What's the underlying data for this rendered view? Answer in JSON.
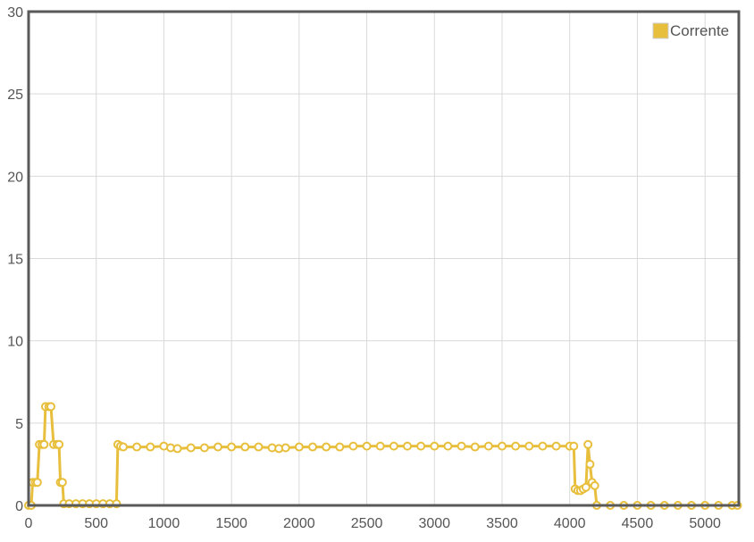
{
  "chart_data": {
    "type": "line",
    "title": "",
    "xlabel": "",
    "ylabel": "",
    "xlim": [
      0,
      5250
    ],
    "ylim": [
      0,
      30
    ],
    "x_ticks": [
      0,
      500,
      1000,
      1500,
      2000,
      2500,
      3000,
      3500,
      4000,
      4500,
      5000
    ],
    "y_ticks": [
      0,
      5,
      10,
      15,
      20,
      25,
      30
    ],
    "grid": true,
    "legend_position": "top-right",
    "series": [
      {
        "name": "Corrente",
        "color": "#e8bf3c",
        "points": [
          [
            0,
            0
          ],
          [
            20,
            0
          ],
          [
            30,
            1.4
          ],
          [
            50,
            1.4
          ],
          [
            65,
            1.4
          ],
          [
            80,
            3.7
          ],
          [
            100,
            3.7
          ],
          [
            115,
            3.7
          ],
          [
            125,
            6.0
          ],
          [
            150,
            6.0
          ],
          [
            165,
            6.0
          ],
          [
            185,
            3.7
          ],
          [
            210,
            3.7
          ],
          [
            225,
            3.7
          ],
          [
            235,
            1.4
          ],
          [
            250,
            1.4
          ],
          [
            260,
            0.1
          ],
          [
            300,
            0.1
          ],
          [
            350,
            0.1
          ],
          [
            400,
            0.1
          ],
          [
            450,
            0.1
          ],
          [
            500,
            0.1
          ],
          [
            550,
            0.1
          ],
          [
            600,
            0.1
          ],
          [
            650,
            0.1
          ],
          [
            660,
            3.7
          ],
          [
            680,
            3.6
          ],
          [
            700,
            3.55
          ],
          [
            800,
            3.55
          ],
          [
            900,
            3.55
          ],
          [
            1000,
            3.6
          ],
          [
            1050,
            3.5
          ],
          [
            1100,
            3.45
          ],
          [
            1200,
            3.5
          ],
          [
            1300,
            3.5
          ],
          [
            1400,
            3.55
          ],
          [
            1500,
            3.55
          ],
          [
            1600,
            3.55
          ],
          [
            1700,
            3.55
          ],
          [
            1800,
            3.5
          ],
          [
            1850,
            3.45
          ],
          [
            1900,
            3.5
          ],
          [
            2000,
            3.55
          ],
          [
            2100,
            3.55
          ],
          [
            2200,
            3.55
          ],
          [
            2300,
            3.55
          ],
          [
            2400,
            3.6
          ],
          [
            2500,
            3.6
          ],
          [
            2600,
            3.6
          ],
          [
            2700,
            3.6
          ],
          [
            2800,
            3.6
          ],
          [
            2900,
            3.6
          ],
          [
            3000,
            3.6
          ],
          [
            3100,
            3.6
          ],
          [
            3200,
            3.6
          ],
          [
            3300,
            3.55
          ],
          [
            3400,
            3.6
          ],
          [
            3500,
            3.6
          ],
          [
            3600,
            3.6
          ],
          [
            3700,
            3.6
          ],
          [
            3800,
            3.6
          ],
          [
            3900,
            3.6
          ],
          [
            4000,
            3.6
          ],
          [
            4030,
            3.6
          ],
          [
            4040,
            1.0
          ],
          [
            4060,
            0.9
          ],
          [
            4080,
            0.9
          ],
          [
            4100,
            1.0
          ],
          [
            4120,
            1.1
          ],
          [
            4135,
            3.7
          ],
          [
            4150,
            2.5
          ],
          [
            4165,
            1.4
          ],
          [
            4185,
            1.2
          ],
          [
            4200,
            0
          ],
          [
            4300,
            0
          ],
          [
            4400,
            0
          ],
          [
            4500,
            0
          ],
          [
            4600,
            0
          ],
          [
            4700,
            0
          ],
          [
            4800,
            0
          ],
          [
            4900,
            0
          ],
          [
            5000,
            0
          ],
          [
            5100,
            0
          ],
          [
            5200,
            0
          ],
          [
            5240,
            0
          ]
        ]
      }
    ]
  }
}
